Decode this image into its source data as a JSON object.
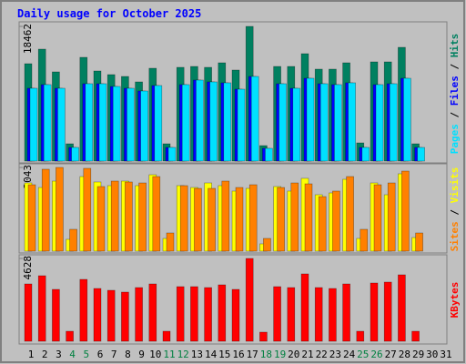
{
  "chart_data": [
    {
      "type": "bar",
      "title": "Daily usage for October 2025",
      "ylim": [
        0,
        18462
      ],
      "yticks": [
        18462
      ],
      "legend_separator": " / ",
      "series": [
        {
          "name": "Hits",
          "color": "#008060",
          "values": [
            13347,
            15343,
            12225,
            2370,
            14221,
            12350,
            11850,
            11600,
            10853,
            12724,
            2370,
            12849,
            12973,
            12849,
            13472,
            12475,
            18462,
            2121,
            12973,
            12973,
            14720,
            12600,
            12600,
            13472,
            2495,
            13597,
            13597,
            15593,
            2370,
            0,
            0
          ]
        },
        {
          "name": "Files",
          "color": "#0000ff",
          "values": [
            9980,
            10479,
            9980,
            1871,
            10603,
            10603,
            10229,
            9980,
            9605,
            10354,
            1871,
            10479,
            11102,
            10853,
            10728,
            9855,
            11600,
            1746,
            10603,
            9980,
            11351,
            10603,
            10479,
            10728,
            1871,
            10479,
            10603,
            11351,
            1871,
            0,
            0
          ]
        },
        {
          "name": "Pages",
          "color": "#00e0ff",
          "values": [
            9980,
            10479,
            9980,
            1871,
            10603,
            10603,
            10229,
            9980,
            9605,
            10354,
            1871,
            10479,
            11102,
            10853,
            10728,
            9855,
            11600,
            1746,
            10603,
            9980,
            11351,
            10603,
            10479,
            10728,
            1871,
            10479,
            10603,
            11351,
            1871,
            0,
            0
          ]
        }
      ]
    },
    {
      "type": "bar",
      "ylim": [
        0,
        2043
      ],
      "yticks": [
        2043
      ],
      "legend_separator": " / ",
      "series": [
        {
          "name": "Visits",
          "color": "#ffff00",
          "values": [
            1665,
            1554,
            1710,
            289,
            1821,
            1688,
            1599,
            1710,
            1599,
            1865,
            311,
            1599,
            1554,
            1665,
            1599,
            1466,
            1532,
            178,
            1577,
            1466,
            1777,
            1377,
            1421,
            1754,
            311,
            1665,
            1377,
            1888,
            333,
            0,
            0
          ]
        },
        {
          "name": "Sites",
          "color": "#ff8000",
          "values": [
            1621,
            1999,
            2043,
            533,
            2021,
            1577,
            1710,
            1688,
            1665,
            1821,
            444,
            1599,
            1532,
            1532,
            1710,
            1554,
            1621,
            311,
            1554,
            1665,
            1643,
            1332,
            1466,
            1821,
            533,
            1621,
            1665,
            1954,
            444,
            0,
            0
          ]
        }
      ]
    },
    {
      "type": "bar",
      "ylim": [
        0,
        4628
      ],
      "yticks": [
        4628
      ],
      "series": [
        {
          "name": "KBytes",
          "color": "#ff0000",
          "values": [
            3204,
            3662,
            2899,
            559,
            3458,
            2950,
            2848,
            2746,
            3001,
            3204,
            559,
            3052,
            3052,
            3001,
            3153,
            2899,
            4628,
            509,
            3052,
            3001,
            3764,
            3001,
            2950,
            3204,
            559,
            3255,
            3306,
            3713,
            559,
            0,
            0
          ]
        }
      ],
      "categories": [
        "1",
        "2",
        "3",
        "4",
        "5",
        "6",
        "7",
        "8",
        "9",
        "10",
        "11",
        "12",
        "13",
        "14",
        "15",
        "16",
        "17",
        "18",
        "19",
        "20",
        "21",
        "22",
        "23",
        "24",
        "25",
        "26",
        "27",
        "28",
        "29",
        "30",
        "31"
      ],
      "category_colors": [
        "#000000",
        "#000000",
        "#000000",
        "#008040",
        "#008040",
        "#000000",
        "#000000",
        "#000000",
        "#000000",
        "#000000",
        "#008040",
        "#008040",
        "#000000",
        "#000000",
        "#000000",
        "#000000",
        "#000000",
        "#008040",
        "#008040",
        "#000000",
        "#000000",
        "#000000",
        "#000000",
        "#000000",
        "#008040",
        "#008040",
        "#000000",
        "#000000",
        "#000000",
        "#000000",
        "#000000"
      ]
    }
  ]
}
